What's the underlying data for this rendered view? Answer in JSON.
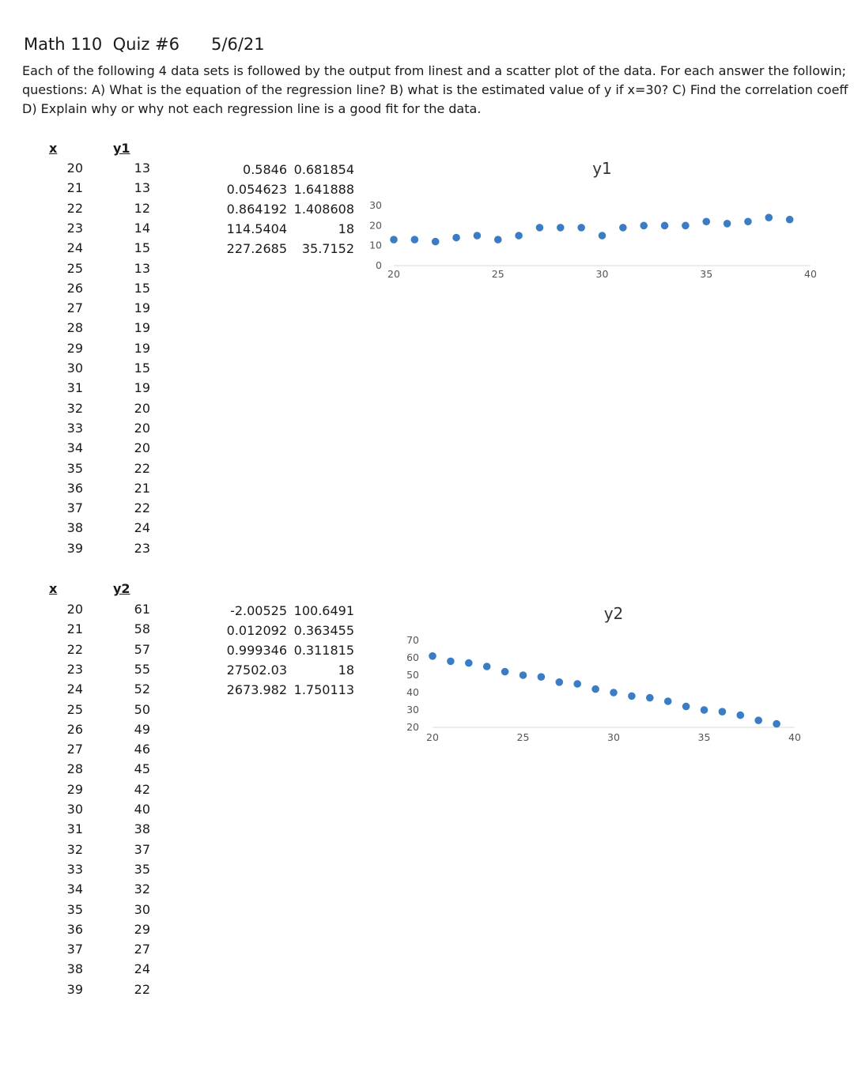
{
  "header": {
    "title": "Math 110  Quiz #6      5/6/21",
    "instructions": [
      "Each of the following 4 data sets is followed by the output from linest and a scatter plot of the data. For each answer the followin;",
      "questions: A) What is the equation of the regression line? B) what is the estimated value of y if x=30? C) Find the correlation coeff",
      "D) Explain why or why not each regression line is a good fit for the data."
    ]
  },
  "datasets": [
    {
      "x_header": "x",
      "y_header": "y1",
      "x": [
        "20",
        "21",
        "22",
        "23",
        "24",
        "25",
        "26",
        "27",
        "28",
        "29",
        "30",
        "31",
        "32",
        "33",
        "34",
        "35",
        "36",
        "37",
        "38",
        "39"
      ],
      "y": [
        "13",
        "13",
        "12",
        "14",
        "15",
        "13",
        "15",
        "19",
        "19",
        "19",
        "15",
        "19",
        "20",
        "20",
        "20",
        "22",
        "21",
        "22",
        "24",
        "23"
      ],
      "linest": [
        [
          "0.5846",
          "0.681854"
        ],
        [
          "0.054623",
          "1.641888"
        ],
        [
          "0.864192",
          "1.408608"
        ],
        [
          "114.5404",
          "18"
        ],
        [
          "227.2685",
          "35.7152"
        ]
      ]
    },
    {
      "x_header": "x",
      "y_header": "y2",
      "x": [
        "20",
        "21",
        "22",
        "23",
        "24",
        "25",
        "26",
        "27",
        "28",
        "29",
        "30",
        "31",
        "32",
        "33",
        "34",
        "35",
        "36",
        "37",
        "38",
        "39"
      ],
      "y": [
        "61",
        "58",
        "57",
        "55",
        "52",
        "50",
        "49",
        "46",
        "45",
        "42",
        "40",
        "38",
        "37",
        "35",
        "32",
        "30",
        "29",
        "27",
        "24",
        "22"
      ],
      "linest": [
        [
          "-2.00525",
          "100.6491"
        ],
        [
          "0.012092",
          "0.363455"
        ],
        [
          "0.999346",
          "0.311815"
        ],
        [
          "27502.03",
          "18"
        ],
        [
          "2673.982",
          "1.750113"
        ]
      ]
    }
  ],
  "chart_data": [
    {
      "type": "scatter",
      "title": "y1",
      "x": [
        20,
        21,
        22,
        23,
        24,
        25,
        26,
        27,
        28,
        29,
        30,
        31,
        32,
        33,
        34,
        35,
        36,
        37,
        38,
        39
      ],
      "y": [
        13,
        13,
        12,
        14,
        15,
        13,
        15,
        19,
        19,
        19,
        15,
        19,
        20,
        20,
        20,
        22,
        21,
        22,
        24,
        23
      ],
      "xlim": [
        20,
        40
      ],
      "ylim": [
        0,
        30
      ],
      "xticks": [
        "20",
        "25",
        "30",
        "35",
        "40"
      ],
      "yticks": [
        "0",
        "10",
        "20",
        "30"
      ],
      "color": "#3b7dc4",
      "grid": false
    },
    {
      "type": "scatter",
      "title": "y2",
      "x": [
        20,
        21,
        22,
        23,
        24,
        25,
        26,
        27,
        28,
        29,
        30,
        31,
        32,
        33,
        34,
        35,
        36,
        37,
        38,
        39
      ],
      "y": [
        61,
        58,
        57,
        55,
        52,
        50,
        49,
        46,
        45,
        42,
        40,
        38,
        37,
        35,
        32,
        30,
        29,
        27,
        24,
        22
      ],
      "xlim": [
        20,
        40
      ],
      "ylim": [
        20,
        70
      ],
      "xticks": [
        "20",
        "25",
        "30",
        "35",
        "40"
      ],
      "yticks": [
        "20",
        "30",
        "40",
        "50",
        "60",
        "70"
      ],
      "color": "#3b7dc4",
      "grid": false
    }
  ]
}
